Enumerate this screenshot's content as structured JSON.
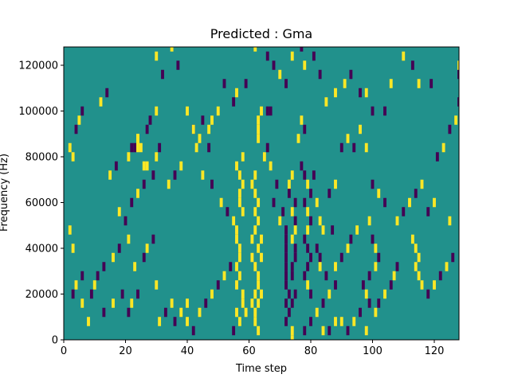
{
  "chart_data": {
    "type": "heatmap",
    "title": "Predicted : Gma",
    "xlabel": "Time step",
    "ylabel": "Frequency (Hz)",
    "xlim": [
      0,
      128
    ],
    "ylim": [
      0,
      128000
    ],
    "x_ticks": [
      0,
      20,
      40,
      60,
      80,
      100,
      120
    ],
    "y_ticks": [
      0,
      20000,
      40000,
      60000,
      80000,
      100000,
      120000
    ],
    "x_tick_labels": [
      "0",
      "20",
      "40",
      "60",
      "80",
      "100",
      "120"
    ],
    "y_tick_labels": [
      "0",
      "20000",
      "40000",
      "60000",
      "80000",
      "100000",
      "120000"
    ],
    "grid": false,
    "legend": "none",
    "colormap": "viridis",
    "levels": {
      "low": -1,
      "mid": 0,
      "high": 1
    },
    "colors": {
      "low": "#440154",
      "mid": "#21918c",
      "high": "#fde725"
    },
    "background_value": 0,
    "cell_width": 1,
    "cell_height": 4000,
    "cells": [
      [
        2,
        84000,
        1
      ],
      [
        3,
        80000,
        1
      ],
      [
        4,
        92000,
        -1
      ],
      [
        5,
        96000,
        1
      ],
      [
        6,
        100000,
        -1
      ],
      [
        12,
        104000,
        1
      ],
      [
        14,
        108000,
        -1
      ],
      [
        2,
        48000,
        1
      ],
      [
        3,
        40000,
        1
      ],
      [
        4,
        24000,
        1
      ],
      [
        6,
        28000,
        -1
      ],
      [
        3,
        20000,
        -1
      ],
      [
        6,
        16000,
        1
      ],
      [
        9,
        20000,
        -1
      ],
      [
        10,
        24000,
        1
      ],
      [
        11,
        28000,
        -1
      ],
      [
        8,
        8000,
        1
      ],
      [
        13,
        12000,
        -1
      ],
      [
        16,
        16000,
        1
      ],
      [
        19,
        20000,
        -1
      ],
      [
        13,
        32000,
        -1
      ],
      [
        16,
        36000,
        1
      ],
      [
        18,
        40000,
        -1
      ],
      [
        21,
        44000,
        1
      ],
      [
        20,
        52000,
        -1
      ],
      [
        18,
        56000,
        1
      ],
      [
        22,
        60000,
        -1
      ],
      [
        24,
        64000,
        1
      ],
      [
        26,
        68000,
        -1
      ],
      [
        15,
        72000,
        1
      ],
      [
        17,
        76000,
        -1
      ],
      [
        21,
        80000,
        1
      ],
      [
        23,
        84000,
        -1
      ],
      [
        24,
        88000,
        1
      ],
      [
        27,
        92000,
        -1
      ],
      [
        24,
        84000,
        1
      ],
      [
        25,
        84000,
        1
      ],
      [
        24,
        88000,
        1
      ],
      [
        22,
        84000,
        -1
      ],
      [
        28,
        96000,
        -1
      ],
      [
        30,
        100000,
        1
      ],
      [
        32,
        116000,
        -1
      ],
      [
        30,
        124000,
        1
      ],
      [
        35,
        128000,
        1
      ],
      [
        37,
        120000,
        -1
      ],
      [
        40,
        100000,
        1
      ],
      [
        42,
        92000,
        -1
      ],
      [
        44,
        88000,
        1
      ],
      [
        47,
        84000,
        -1
      ],
      [
        45,
        72000,
        1
      ],
      [
        48,
        68000,
        -1
      ],
      [
        51,
        60000,
        1
      ],
      [
        53,
        56000,
        -1
      ],
      [
        55,
        52000,
        1
      ],
      [
        56,
        48000,
        1
      ],
      [
        56,
        44000,
        1
      ],
      [
        57,
        40000,
        1
      ],
      [
        56,
        32000,
        1
      ],
      [
        57,
        28000,
        1
      ],
      [
        56,
        24000,
        1
      ],
      [
        58,
        20000,
        1
      ],
      [
        56,
        12000,
        1
      ],
      [
        57,
        8000,
        1
      ],
      [
        55,
        4000,
        -1
      ],
      [
        57,
        64000,
        1
      ],
      [
        58,
        68000,
        1
      ],
      [
        57,
        72000,
        1
      ],
      [
        57,
        60000,
        1
      ],
      [
        58,
        56000,
        1
      ],
      [
        56,
        76000,
        1
      ],
      [
        58,
        80000,
        1
      ],
      [
        57,
        36000,
        1
      ],
      [
        58,
        16000,
        1
      ],
      [
        59,
        12000,
        1
      ],
      [
        61,
        36000,
        1
      ],
      [
        62,
        32000,
        1
      ],
      [
        61,
        44000,
        1
      ],
      [
        62,
        48000,
        1
      ],
      [
        63,
        52000,
        1
      ],
      [
        62,
        56000,
        1
      ],
      [
        63,
        60000,
        1
      ],
      [
        62,
        64000,
        1
      ],
      [
        61,
        68000,
        1
      ],
      [
        62,
        72000,
        1
      ],
      [
        63,
        24000,
        1
      ],
      [
        64,
        20000,
        1
      ],
      [
        63,
        16000,
        1
      ],
      [
        63,
        28000,
        1
      ],
      [
        62,
        8000,
        1
      ],
      [
        63,
        4000,
        1
      ],
      [
        62,
        12000,
        1
      ],
      [
        63,
        40000,
        1
      ],
      [
        62,
        20000,
        1
      ],
      [
        61,
        16000,
        1
      ],
      [
        64,
        36000,
        1
      ],
      [
        64,
        44000,
        1
      ],
      [
        63,
        88000,
        1
      ],
      [
        63,
        92000,
        1
      ],
      [
        63,
        96000,
        1
      ],
      [
        64,
        100000,
        1
      ],
      [
        66,
        100000,
        -1
      ],
      [
        67,
        100000,
        -1
      ],
      [
        65,
        80000,
        1
      ],
      [
        66,
        84000,
        -1
      ],
      [
        67,
        76000,
        1
      ],
      [
        68,
        60000,
        -1
      ],
      [
        69,
        68000,
        -1
      ],
      [
        70,
        52000,
        1
      ],
      [
        71,
        56000,
        -1
      ],
      [
        72,
        48000,
        -1
      ],
      [
        72,
        44000,
        -1
      ],
      [
        72,
        40000,
        -1
      ],
      [
        72,
        36000,
        -1
      ],
      [
        72,
        32000,
        -1
      ],
      [
        72,
        28000,
        -1
      ],
      [
        72,
        24000,
        -1
      ],
      [
        73,
        20000,
        -1
      ],
      [
        72,
        16000,
        -1
      ],
      [
        73,
        12000,
        -1
      ],
      [
        72,
        8000,
        -1
      ],
      [
        74,
        4000,
        1
      ],
      [
        74,
        0,
        1
      ],
      [
        73,
        68000,
        1
      ],
      [
        74,
        72000,
        1
      ],
      [
        73,
        64000,
        -1
      ],
      [
        75,
        60000,
        -1
      ],
      [
        74,
        56000,
        1
      ],
      [
        75,
        52000,
        -1
      ],
      [
        75,
        48000,
        1
      ],
      [
        74,
        44000,
        1
      ],
      [
        75,
        40000,
        -1
      ],
      [
        74,
        32000,
        -1
      ],
      [
        75,
        36000,
        -1
      ],
      [
        74,
        28000,
        -1
      ],
      [
        75,
        20000,
        -1
      ],
      [
        74,
        16000,
        -1
      ],
      [
        78,
        72000,
        -1
      ],
      [
        79,
        68000,
        1
      ],
      [
        78,
        60000,
        -1
      ],
      [
        79,
        56000,
        1
      ],
      [
        80,
        52000,
        -1
      ],
      [
        79,
        48000,
        1
      ],
      [
        78,
        44000,
        -1
      ],
      [
        79,
        40000,
        -1
      ],
      [
        80,
        36000,
        -1
      ],
      [
        79,
        32000,
        -1
      ],
      [
        78,
        28000,
        -1
      ],
      [
        79,
        24000,
        1
      ],
      [
        80,
        20000,
        -1
      ],
      [
        80,
        64000,
        -1
      ],
      [
        81,
        72000,
        -1
      ],
      [
        77,
        76000,
        -1
      ],
      [
        76,
        88000,
        1
      ],
      [
        77,
        96000,
        1
      ],
      [
        78,
        92000,
        -1
      ],
      [
        82,
        60000,
        1
      ],
      [
        83,
        52000,
        1
      ],
      [
        84,
        48000,
        1
      ],
      [
        82,
        40000,
        -1
      ],
      [
        83,
        36000,
        -1
      ],
      [
        83,
        32000,
        1
      ],
      [
        85,
        28000,
        -1
      ],
      [
        87,
        48000,
        -1
      ],
      [
        86,
        64000,
        -1
      ],
      [
        88,
        68000,
        1
      ],
      [
        90,
        84000,
        -1
      ],
      [
        92,
        88000,
        1
      ],
      [
        94,
        84000,
        -1
      ],
      [
        96,
        92000,
        1
      ],
      [
        98,
        84000,
        1
      ],
      [
        100,
        68000,
        -1
      ],
      [
        102,
        64000,
        1
      ],
      [
        104,
        60000,
        -1
      ],
      [
        99,
        52000,
        1
      ],
      [
        100,
        44000,
        -1
      ],
      [
        101,
        40000,
        1
      ],
      [
        102,
        36000,
        -1
      ],
      [
        101,
        32000,
        1
      ],
      [
        99,
        28000,
        -1
      ],
      [
        97,
        24000,
        -1
      ],
      [
        98,
        20000,
        1
      ],
      [
        99,
        16000,
        -1
      ],
      [
        101,
        12000,
        1
      ],
      [
        102,
        16000,
        -1
      ],
      [
        104,
        20000,
        1
      ],
      [
        106,
        24000,
        -1
      ],
      [
        107,
        28000,
        1
      ],
      [
        108,
        32000,
        -1
      ],
      [
        108,
        52000,
        1
      ],
      [
        110,
        56000,
        -1
      ],
      [
        112,
        60000,
        1
      ],
      [
        114,
        64000,
        -1
      ],
      [
        116,
        68000,
        1
      ],
      [
        113,
        44000,
        1
      ],
      [
        114,
        40000,
        1
      ],
      [
        115,
        36000,
        1
      ],
      [
        114,
        32000,
        1
      ],
      [
        115,
        28000,
        1
      ],
      [
        116,
        24000,
        1
      ],
      [
        118,
        20000,
        -1
      ],
      [
        120,
        24000,
        1
      ],
      [
        122,
        28000,
        -1
      ],
      [
        124,
        32000,
        1
      ],
      [
        126,
        36000,
        -1
      ],
      [
        125,
        52000,
        1
      ],
      [
        120,
        60000,
        1
      ],
      [
        118,
        56000,
        -1
      ],
      [
        121,
        80000,
        -1
      ],
      [
        123,
        84000,
        1
      ],
      [
        125,
        92000,
        -1
      ],
      [
        127,
        96000,
        1
      ],
      [
        128,
        104000,
        -1
      ],
      [
        128,
        116000,
        -1
      ],
      [
        128,
        120000,
        1
      ],
      [
        119,
        112000,
        -1
      ],
      [
        115,
        112000,
        1
      ],
      [
        113,
        120000,
        -1
      ],
      [
        110,
        124000,
        1
      ],
      [
        106,
        112000,
        1
      ],
      [
        104,
        100000,
        -1
      ],
      [
        100,
        100000,
        -1
      ],
      [
        98,
        108000,
        1
      ],
      [
        96,
        108000,
        -1
      ],
      [
        93,
        116000,
        -1
      ],
      [
        91,
        112000,
        1
      ],
      [
        88,
        108000,
        1
      ],
      [
        85,
        104000,
        1
      ],
      [
        83,
        116000,
        -1
      ],
      [
        81,
        124000,
        -1
      ],
      [
        78,
        120000,
        1
      ],
      [
        77,
        128000,
        -1
      ],
      [
        74,
        124000,
        1
      ],
      [
        72,
        112000,
        -1
      ],
      [
        70,
        116000,
        1
      ],
      [
        68,
        120000,
        -1
      ],
      [
        66,
        124000,
        -1
      ],
      [
        62,
        128000,
        1
      ],
      [
        59,
        112000,
        -1
      ],
      [
        56,
        108000,
        1
      ],
      [
        55,
        104000,
        -1
      ],
      [
        52,
        112000,
        -1
      ],
      [
        50,
        100000,
        1
      ],
      [
        48,
        96000,
        1
      ],
      [
        47,
        92000,
        1
      ],
      [
        45,
        96000,
        -1
      ],
      [
        42,
        92000,
        1
      ],
      [
        43,
        84000,
        1
      ],
      [
        38,
        76000,
        1
      ],
      [
        36,
        72000,
        -1
      ],
      [
        34,
        68000,
        1
      ],
      [
        31,
        84000,
        -1
      ],
      [
        30,
        80000,
        1
      ],
      [
        29,
        72000,
        -1
      ],
      [
        27,
        76000,
        1
      ],
      [
        26,
        76000,
        1
      ],
      [
        21,
        12000,
        -1
      ],
      [
        22,
        16000,
        1
      ],
      [
        24,
        20000,
        -1
      ],
      [
        23,
        32000,
        1
      ],
      [
        26,
        36000,
        -1
      ],
      [
        27,
        40000,
        1
      ],
      [
        29,
        44000,
        -1
      ],
      [
        30,
        24000,
        1
      ],
      [
        31,
        8000,
        1
      ],
      [
        33,
        12000,
        -1
      ],
      [
        35,
        16000,
        1
      ],
      [
        36,
        8000,
        -1
      ],
      [
        38,
        12000,
        1
      ],
      [
        40,
        16000,
        1
      ],
      [
        40,
        8000,
        1
      ],
      [
        42,
        4000,
        -1
      ],
      [
        44,
        12000,
        1
      ],
      [
        46,
        16000,
        -1
      ],
      [
        48,
        20000,
        1
      ],
      [
        50,
        24000,
        -1
      ],
      [
        52,
        28000,
        1
      ],
      [
        54,
        32000,
        -1
      ],
      [
        88,
        32000,
        1
      ],
      [
        90,
        36000,
        -1
      ],
      [
        92,
        40000,
        1
      ],
      [
        93,
        44000,
        -1
      ],
      [
        95,
        48000,
        1
      ],
      [
        88,
        24000,
        -1
      ],
      [
        86,
        20000,
        1
      ],
      [
        84,
        16000,
        -1
      ],
      [
        82,
        12000,
        1
      ],
      [
        80,
        8000,
        -1
      ],
      [
        78,
        4000,
        -1
      ],
      [
        84,
        4000,
        1
      ],
      [
        86,
        4000,
        -1
      ],
      [
        88,
        8000,
        1
      ],
      [
        90,
        8000,
        1
      ],
      [
        92,
        4000,
        -1
      ],
      [
        94,
        8000,
        1
      ],
      [
        96,
        12000,
        -1
      ],
      [
        98,
        4000,
        1
      ]
    ]
  }
}
